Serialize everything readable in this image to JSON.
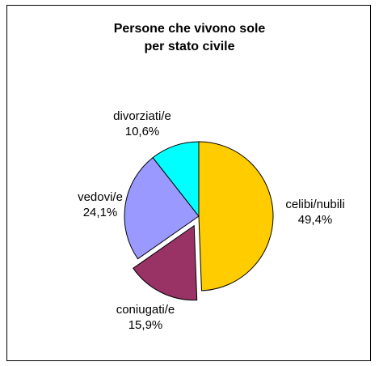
{
  "chart_data": {
    "type": "pie",
    "title_lines": [
      "Persone che vivono sole",
      "per stato civile"
    ],
    "slices": [
      {
        "name": "celibi/nubili",
        "value": 49.4,
        "label": "49,4%",
        "color": "#FFCC00",
        "exploded": false
      },
      {
        "name": "coniugati/e",
        "value": 15.9,
        "label": "15,9%",
        "color": "#993366",
        "exploded": true
      },
      {
        "name": "vedovi/e",
        "value": 24.1,
        "label": "24,1%",
        "color": "#9999FF",
        "exploded": false
      },
      {
        "name": "divorziati/e",
        "value": 10.6,
        "label": "10,6%",
        "color": "#00FFFF",
        "exploded": false
      }
    ]
  }
}
